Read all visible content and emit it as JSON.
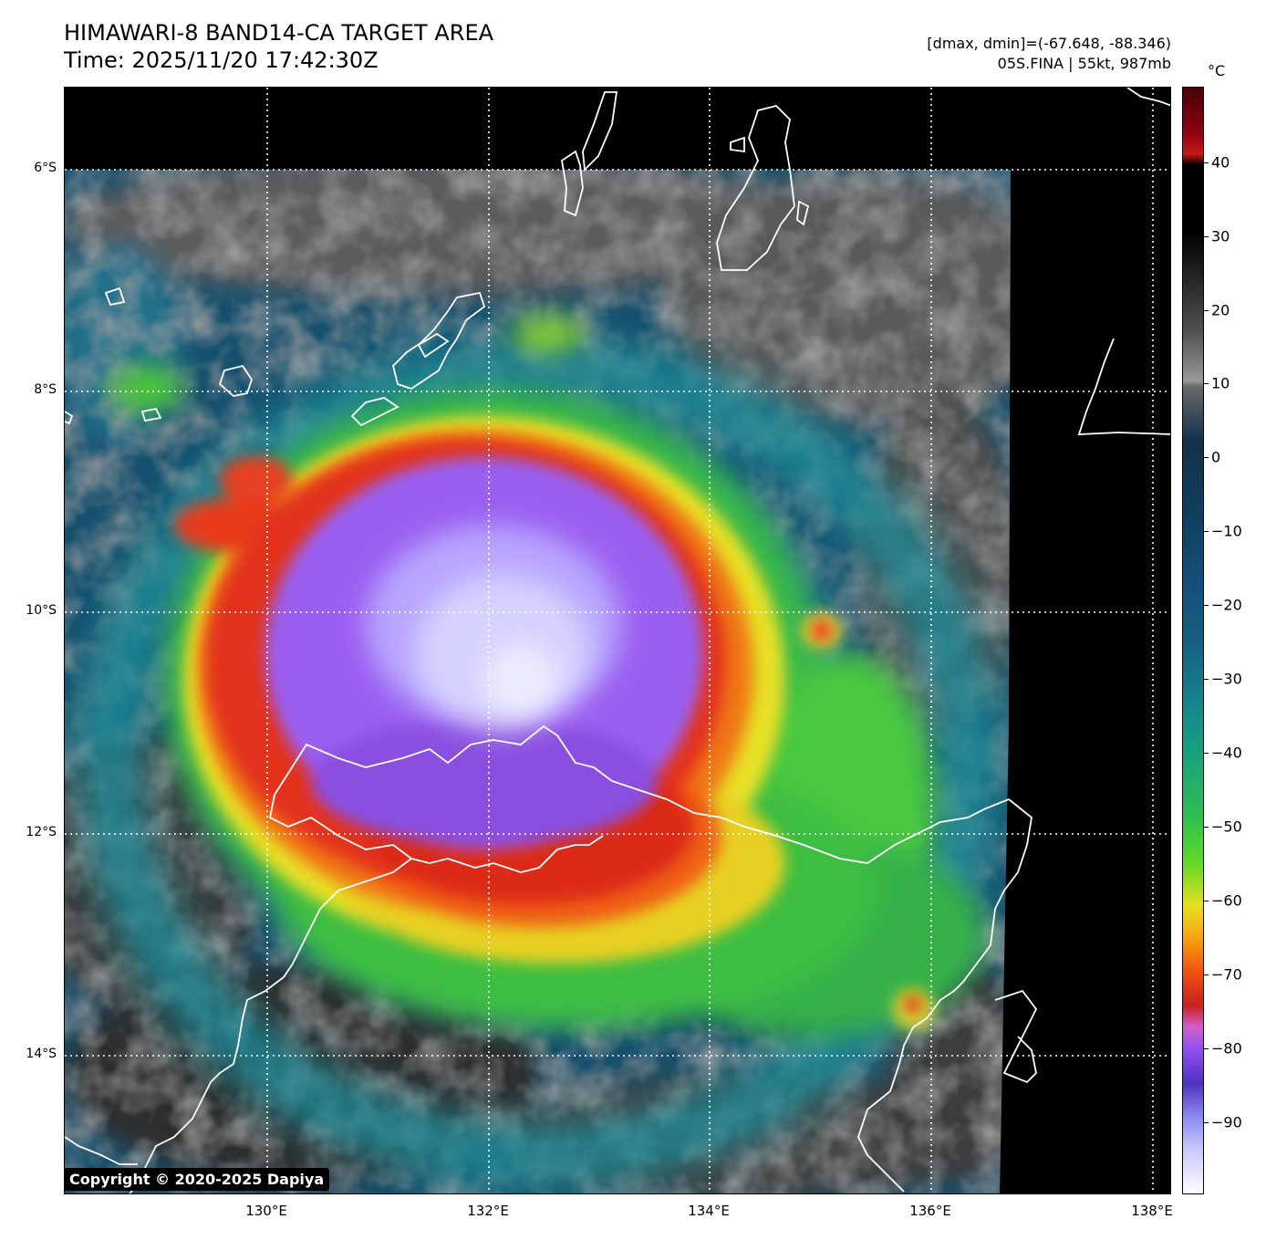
{
  "header": {
    "title_line1": "HIMAWARI-8 BAND14-CA TARGET AREA",
    "title_line2": "Time: 2025/11/20 17:42:30Z",
    "range_text": "[dmax, dmin]=(-67.648, -88.346)",
    "storm_text": "05S.FINA | 55kt, 987mb"
  },
  "colorbar": {
    "unit": "°C",
    "ticks": [
      "40",
      "30",
      "20",
      "10",
      "0",
      "−10",
      "−20",
      "−30",
      "−40",
      "−50",
      "−60",
      "−70",
      "−80",
      "−90"
    ]
  },
  "axes": {
    "lat_labels": [
      "6°S",
      "8°S",
      "10°S",
      "12°S",
      "14°S"
    ],
    "lon_labels": [
      "130°E",
      "132°E",
      "134°E",
      "136°E",
      "138°E"
    ]
  },
  "copyright": "Copyright © 2020-2025 Dapiya",
  "colors": {
    "eye_core": "#d8d8ff",
    "cold_top": "#9a5ef0",
    "red_band": "#e0301a",
    "yellow_band": "#f0e020",
    "green_band": "#40d030",
    "teal": "#1a8a95",
    "blue": "#14406a",
    "clear_gray": "#5a5a5a",
    "coast": "#ffffff",
    "nodata": "#000000"
  }
}
